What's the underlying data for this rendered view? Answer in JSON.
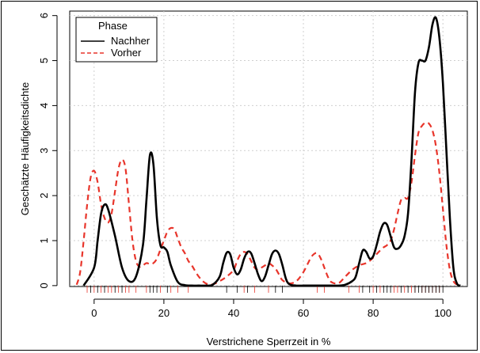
{
  "chart_data": {
    "type": "line",
    "title": "",
    "xlabel": "Verstrichene Sperrzeit in %",
    "ylabel": "Geschätzte Häufigkeitsdichte",
    "xlim": [
      -7,
      107
    ],
    "ylim": [
      -0.02,
      6.1
    ],
    "xticks": [
      0,
      20,
      40,
      60,
      80,
      100
    ],
    "yticks": [
      0,
      1,
      2,
      3,
      4,
      5,
      6
    ],
    "grid": true,
    "legend": {
      "title": "Phase",
      "position": "top-left",
      "entries": [
        {
          "name": "Nachher",
          "color": "#000000",
          "style": "solid"
        },
        {
          "name": "Vorher",
          "color": "#e8352b",
          "style": "dashed"
        }
      ]
    },
    "series": [
      {
        "name": "Nachher",
        "color": "#000000",
        "style": "solid",
        "x": [
          -3,
          0,
          1,
          2,
          3,
          4,
          6,
          8,
          10,
          12,
          14,
          15,
          16,
          17,
          18,
          19,
          20,
          21,
          22,
          24,
          26,
          28,
          30,
          32,
          34,
          36,
          37,
          38,
          39,
          40,
          41,
          42,
          43,
          44,
          45,
          46,
          47,
          48,
          49,
          50,
          51,
          52,
          53,
          54,
          55,
          56,
          58,
          60,
          62,
          64,
          66,
          68,
          70,
          72,
          74,
          75,
          76,
          77,
          78,
          79,
          80,
          81,
          82,
          83,
          84,
          85,
          86,
          87,
          88,
          89,
          90,
          91,
          92,
          93,
          94,
          95,
          96,
          97,
          98,
          99,
          100,
          101,
          102,
          103,
          104,
          105
        ],
        "y": [
          0.0,
          0.4,
          1.0,
          1.6,
          1.8,
          1.7,
          1.1,
          0.4,
          0.1,
          0.2,
          0.9,
          1.9,
          2.9,
          2.7,
          1.5,
          0.9,
          0.85,
          0.75,
          0.45,
          0.08,
          0.01,
          0.0,
          0.0,
          0.0,
          0.02,
          0.2,
          0.5,
          0.73,
          0.7,
          0.4,
          0.25,
          0.35,
          0.6,
          0.75,
          0.72,
          0.5,
          0.25,
          0.1,
          0.2,
          0.45,
          0.7,
          0.78,
          0.7,
          0.45,
          0.15,
          0.03,
          0.0,
          0.0,
          0.0,
          0.0,
          0.0,
          0.0,
          0.0,
          0.02,
          0.1,
          0.2,
          0.5,
          0.78,
          0.75,
          0.6,
          0.65,
          0.9,
          1.2,
          1.38,
          1.35,
          1.1,
          0.85,
          0.82,
          0.9,
          1.1,
          1.6,
          2.8,
          4.3,
          4.95,
          5.0,
          5.0,
          5.3,
          5.8,
          5.95,
          5.5,
          4.5,
          3.0,
          1.5,
          0.4,
          0.05,
          0.0
        ]
      },
      {
        "name": "Vorher",
        "color": "#e8352b",
        "style": "dashed",
        "x": [
          -5,
          -4,
          -3,
          -2,
          -1,
          0,
          1,
          2,
          3,
          4,
          5,
          6,
          7,
          8,
          9,
          10,
          11,
          12,
          13,
          14,
          15,
          16,
          17,
          18,
          19,
          20,
          21,
          22,
          23,
          24,
          25,
          26,
          27,
          28,
          30,
          32,
          34,
          36,
          38,
          40,
          41,
          42,
          43,
          44,
          45,
          46,
          47,
          48,
          49,
          50,
          51,
          52,
          53,
          54,
          56,
          58,
          60,
          62,
          63,
          64,
          65,
          66,
          67,
          68,
          70,
          72,
          74,
          76,
          78,
          79,
          80,
          81,
          82,
          83,
          84,
          85,
          86,
          87,
          88,
          89,
          90,
          91,
          92,
          93,
          94,
          95,
          96,
          97,
          98,
          99,
          100,
          101,
          102,
          103,
          104
        ],
        "y": [
          0.02,
          0.3,
          1.0,
          1.8,
          2.4,
          2.55,
          2.3,
          1.8,
          1.5,
          1.4,
          1.6,
          2.1,
          2.6,
          2.8,
          2.6,
          1.8,
          1.0,
          0.55,
          0.42,
          0.45,
          0.5,
          0.48,
          0.5,
          0.6,
          0.8,
          1.0,
          1.2,
          1.28,
          1.25,
          1.05,
          0.85,
          0.72,
          0.55,
          0.45,
          0.2,
          0.05,
          0.03,
          0.1,
          0.2,
          0.35,
          0.55,
          0.7,
          0.75,
          0.7,
          0.55,
          0.4,
          0.35,
          0.4,
          0.45,
          0.5,
          0.45,
          0.38,
          0.25,
          0.12,
          0.05,
          0.1,
          0.3,
          0.6,
          0.7,
          0.72,
          0.6,
          0.4,
          0.2,
          0.08,
          0.05,
          0.2,
          0.35,
          0.45,
          0.5,
          0.55,
          0.62,
          0.7,
          0.78,
          0.85,
          0.9,
          1.0,
          1.25,
          1.6,
          1.9,
          1.95,
          1.95,
          2.3,
          2.9,
          3.4,
          3.55,
          3.62,
          3.6,
          3.45,
          3.1,
          2.5,
          1.7,
          0.9,
          0.35,
          0.1,
          0.02
        ]
      }
    ],
    "rug": {
      "black_x": [
        -1,
        1,
        3,
        6,
        8,
        16,
        17,
        18,
        21,
        38,
        41,
        44,
        52,
        54,
        77,
        79,
        81,
        83,
        84,
        85,
        88,
        90,
        92,
        93,
        94,
        95,
        96,
        97,
        98,
        99,
        100
      ],
      "red_x": [
        -2,
        0,
        2,
        4,
        5,
        7,
        9,
        10,
        12,
        15,
        19,
        22,
        24,
        27,
        43,
        46,
        50,
        64,
        66,
        73,
        76,
        80,
        82,
        86,
        87,
        89,
        91,
        92,
        94,
        95,
        96,
        97,
        98,
        99
      ]
    }
  }
}
